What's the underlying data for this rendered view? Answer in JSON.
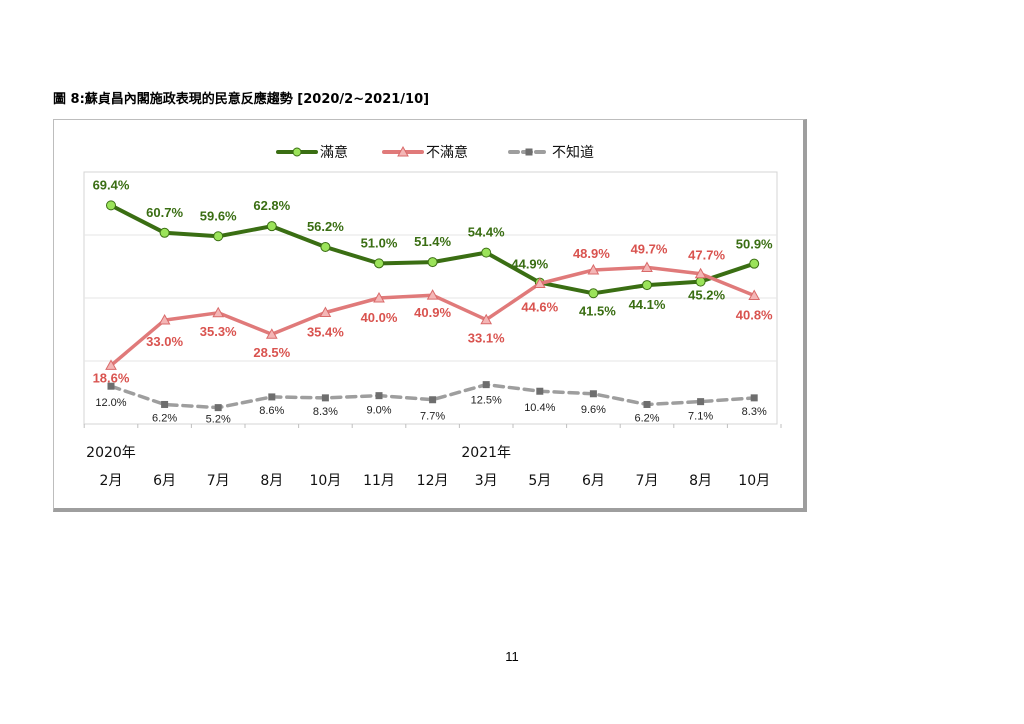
{
  "page": {
    "title": "圖 8:蘇貞昌內閣施政表現的民意反應趨勢  [2020/2~2021/10]",
    "page_number": "11"
  },
  "chart_data": {
    "type": "line",
    "title": "",
    "xlabel": "",
    "ylabel": "",
    "ylim": [
      0,
      80
    ],
    "grid": true,
    "legend_position": "top",
    "categories": [
      "2月",
      "6月",
      "7月",
      "8月",
      "10月",
      "11月",
      "12月",
      "3月",
      "5月",
      "6月",
      "7月",
      "8月",
      "10月"
    ],
    "year_labels": [
      {
        "label": "2020年",
        "index": 0
      },
      {
        "label": "2021年",
        "index": 7
      }
    ],
    "series": [
      {
        "name": "滿意",
        "color": "#3a6e13",
        "marker_fill": "#9be35a",
        "marker": "circle",
        "label_color": "#3a6e13",
        "dashed": false,
        "values": [
          69.4,
          60.7,
          59.6,
          62.8,
          56.2,
          51.0,
          51.4,
          54.4,
          44.9,
          41.5,
          44.1,
          45.2,
          50.9
        ],
        "labels": [
          "69.4%",
          "60.7%",
          "59.6%",
          "62.8%",
          "56.2%",
          "51.0%",
          "51.4%",
          "54.4%",
          "44.9%",
          "41.5%",
          "44.1%",
          "45.2%",
          "50.9%"
        ]
      },
      {
        "name": "不滿意",
        "color": "#e07a7a",
        "marker_fill": "#f4b6b6",
        "marker": "triangle",
        "label_color": "#d9534f",
        "dashed": false,
        "values": [
          18.6,
          33.0,
          35.3,
          28.5,
          35.4,
          40.0,
          40.9,
          33.1,
          44.6,
          48.9,
          49.7,
          47.7,
          40.8
        ],
        "labels": [
          "18.6%",
          "33.0%",
          "35.3%",
          "28.5%",
          "35.4%",
          "40.0%",
          "40.9%",
          "33.1%",
          "44.6%",
          "48.9%",
          "49.7%",
          "47.7%",
          "40.8%"
        ]
      },
      {
        "name": "不知道",
        "color": "#9e9e9e",
        "marker_fill": "#6e6e6e",
        "marker": "square",
        "label_color": "#222222",
        "dashed": true,
        "values": [
          12.0,
          6.2,
          5.2,
          8.6,
          8.3,
          9.0,
          7.7,
          12.5,
          10.4,
          9.6,
          6.2,
          7.1,
          8.3
        ],
        "labels": [
          "12.0%",
          "6.2%",
          "5.2%",
          "8.6%",
          "8.3%",
          "9.0%",
          "7.7%",
          "12.5%",
          "10.4%",
          "9.6%",
          "6.2%",
          "7.1%",
          "8.3%"
        ]
      }
    ]
  }
}
